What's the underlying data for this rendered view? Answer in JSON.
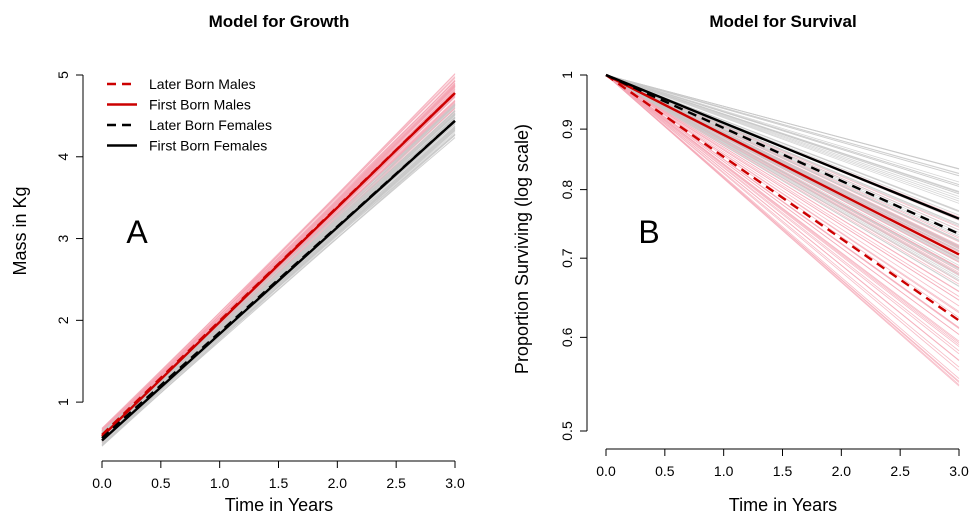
{
  "chart_data": [
    {
      "type": "line",
      "panel_label": "A",
      "title": "Model for Growth",
      "xlabel": "Time in Years",
      "ylabel": "Mass in Kg",
      "xlim": [
        0,
        3
      ],
      "ylim": [
        0.5,
        5
      ],
      "x_ticks": [
        "0.0",
        "0.5",
        "1.0",
        "1.5",
        "2.0",
        "2.5",
        "3.0"
      ],
      "y_ticks": [
        "1",
        "2",
        "3",
        "4",
        "5"
      ],
      "legend_position": "top-left",
      "series": [
        {
          "name": "Later Born Males",
          "color": "#cc0000",
          "dash": "dashed",
          "x": [
            0,
            3
          ],
          "y": [
            0.6,
            4.78
          ]
        },
        {
          "name": "First Born Males",
          "color": "#cc0000",
          "dash": "solid",
          "x": [
            0,
            3
          ],
          "y": [
            0.58,
            4.78
          ]
        },
        {
          "name": "Later Born Females",
          "color": "#000000",
          "dash": "dashed",
          "x": [
            0,
            3
          ],
          "y": [
            0.56,
            4.44
          ]
        },
        {
          "name": "First Born Females",
          "color": "#000000",
          "dash": "solid",
          "x": [
            0,
            3
          ],
          "y": [
            0.53,
            4.44
          ]
        }
      ],
      "posterior_bands": [
        {
          "color": "#f4a6b4",
          "start": [
            0.5,
            0.68
          ],
          "end": [
            4.55,
            5.02
          ]
        },
        {
          "color": "#c8c8c8",
          "start": [
            0.46,
            0.64
          ],
          "end": [
            4.22,
            4.66
          ]
        }
      ]
    },
    {
      "type": "line",
      "panel_label": "B",
      "title": "Model for Survival",
      "xlabel": "Time in Years",
      "ylabel": "Proportion Surviving (log scale)",
      "xlim": [
        0,
        3
      ],
      "ylim": [
        0.5,
        1
      ],
      "y_scale": "log",
      "x_ticks": [
        "0.0",
        "0.5",
        "1.0",
        "1.5",
        "2.0",
        "2.5",
        "3.0"
      ],
      "y_ticks": [
        "0.5",
        "0.6",
        "0.7",
        "0.8",
        "0.9",
        "1"
      ],
      "series": [
        {
          "name": "Later Born Males",
          "color": "#cc0000",
          "dash": "dashed",
          "x": [
            0,
            3
          ],
          "y": [
            1.0,
            0.62
          ]
        },
        {
          "name": "First Born Males",
          "color": "#cc0000",
          "dash": "solid",
          "x": [
            0,
            3
          ],
          "y": [
            1.0,
            0.705
          ]
        },
        {
          "name": "Later Born Females",
          "color": "#000000",
          "dash": "dashed",
          "x": [
            0,
            3
          ],
          "y": [
            1.0,
            0.734
          ]
        },
        {
          "name": "First Born Females",
          "color": "#000000",
          "dash": "solid",
          "x": [
            0,
            3
          ],
          "y": [
            1.0,
            0.756
          ]
        }
      ],
      "posterior_bands": [
        {
          "color": "#f4a6b4",
          "start": [
            1.0,
            1.0
          ],
          "end": [
            0.54,
            0.76
          ]
        },
        {
          "color": "#c8c8c8",
          "start": [
            1.0,
            1.0
          ],
          "end": [
            0.66,
            0.84
          ]
        }
      ]
    }
  ]
}
